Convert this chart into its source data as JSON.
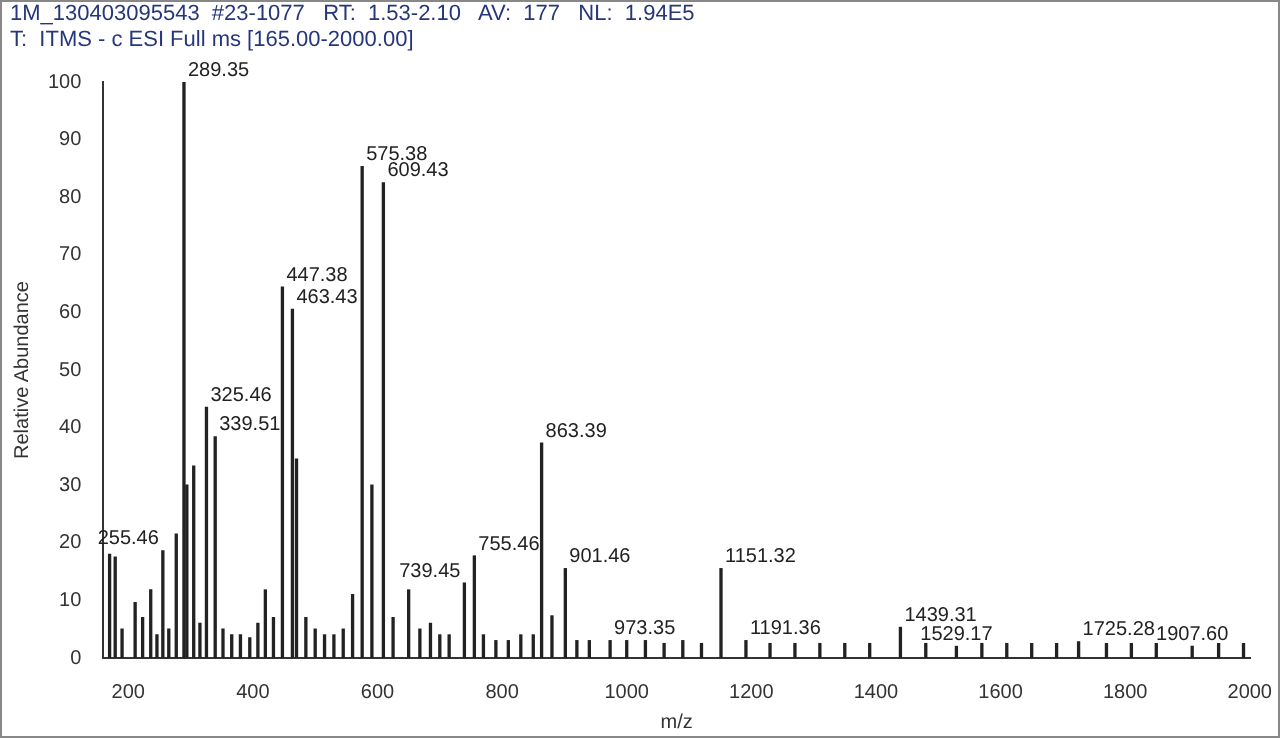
{
  "chart_data": {
    "type": "bar",
    "title": "1M_130403095543  #23-1077   RT:  1.53-2.10   AV:  177   NL:  1.94E5",
    "subtitle": "T:  ITMS - c ESI Full ms [165.00-2000.00]",
    "xlabel": "m/z",
    "ylabel": "Relative Abundance",
    "x": [
      170,
      179,
      190,
      211,
      223,
      236,
      246,
      255.46,
      265,
      277,
      289.35,
      294,
      305,
      315,
      325.46,
      339.51,
      352,
      366,
      380,
      395,
      408,
      420,
      433,
      447.38,
      463.43,
      470,
      485,
      500,
      515,
      530,
      545,
      560,
      575.38,
      591,
      609.43,
      625,
      650,
      668,
      685,
      700,
      715,
      739.45,
      755.46,
      770,
      790,
      810,
      830,
      850,
      863.39,
      880,
      901.46,
      920,
      940,
      973.35,
      1000,
      1030,
      1060,
      1090,
      1120,
      1151.32,
      1191.36,
      1230,
      1270,
      1310,
      1350,
      1390,
      1439.31,
      1480,
      1529.17,
      1570,
      1610,
      1650,
      1690,
      1725.28,
      1770,
      1810,
      1850,
      1907.6,
      1950,
      1990
    ],
    "values": [
      18,
      17.5,
      5,
      9.6,
      7,
      11.8,
      4,
      18.6,
      5,
      21.5,
      100,
      30,
      33.3,
      6,
      43.5,
      38.4,
      5,
      4,
      4,
      3.5,
      6,
      11.8,
      7,
      64.4,
      60.5,
      34.5,
      7,
      5,
      4,
      4,
      5,
      11,
      85.3,
      30,
      82.5,
      7,
      11.8,
      5,
      6,
      4,
      4,
      13,
      17.7,
      4,
      3,
      3,
      4,
      4,
      37.3,
      7.3,
      15.5,
      3,
      3,
      3,
      3,
      3,
      2.5,
      3,
      2.5,
      15.5,
      3,
      2.5,
      2.5,
      2.5,
      2.5,
      2.5,
      5.3,
      2.5,
      2,
      2.5,
      2.5,
      2.5,
      2.5,
      2.8,
      2.5,
      2.5,
      2.5,
      2,
      2.5,
      2.5
    ],
    "color": "#222222",
    "xlim": [
      160,
      2000
    ],
    "xticks": [
      200,
      400,
      600,
      800,
      1000,
      1200,
      1400,
      1600,
      1800,
      2000
    ],
    "ylim": [
      0,
      100
    ],
    "yticks": [
      0,
      10,
      20,
      30,
      40,
      50,
      60,
      70,
      80,
      90,
      100
    ],
    "grid": false,
    "annotations": [
      {
        "text": "289.35",
        "x": 289.35,
        "y": 100
      },
      {
        "text": "255.46",
        "x": 255.46,
        "y": 18.6
      },
      {
        "text": "325.46",
        "x": 325.46,
        "y": 43.5
      },
      {
        "text": "339.51",
        "x": 339.51,
        "y": 38.4
      },
      {
        "text": "447.38",
        "x": 447.38,
        "y": 64.4
      },
      {
        "text": "463.43",
        "x": 463.43,
        "y": 60.5
      },
      {
        "text": "575.38",
        "x": 575.38,
        "y": 85.3
      },
      {
        "text": "609.43",
        "x": 609.43,
        "y": 82.5
      },
      {
        "text": "739.45",
        "x": 739.45,
        "y": 13
      },
      {
        "text": "755.46",
        "x": 755.46,
        "y": 17.7
      },
      {
        "text": "863.39",
        "x": 863.39,
        "y": 37.3
      },
      {
        "text": "901.46",
        "x": 901.46,
        "y": 15.5
      },
      {
        "text": "973.35",
        "x": 973.35,
        "y": 3
      },
      {
        "text": "1151.32",
        "x": 1151.32,
        "y": 15.5
      },
      {
        "text": "1191.36",
        "x": 1191.36,
        "y": 3
      },
      {
        "text": "1439.31",
        "x": 1439.31,
        "y": 5.3
      },
      {
        "text": "1529.17",
        "x": 1529.17,
        "y": 2
      },
      {
        "text": "1725.28",
        "x": 1725.28,
        "y": 2.8
      },
      {
        "text": "1907.60",
        "x": 1907.6,
        "y": 2
      }
    ]
  }
}
